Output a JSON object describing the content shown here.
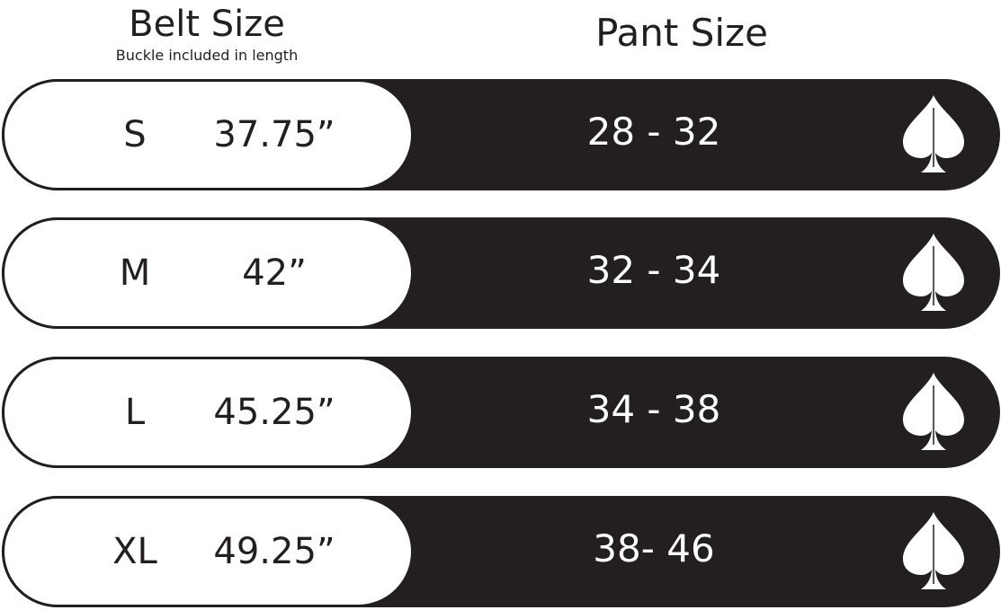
{
  "header": {
    "belt_title": "Belt Size",
    "belt_subtitle": "Buckle included in length",
    "pant_title": "Pant Size"
  },
  "rows": [
    {
      "size": "S",
      "length": "37.75”",
      "pant": "28 - 32",
      "icon": "spade-golf-flag-icon"
    },
    {
      "size": "M",
      "length": "42”",
      "pant": "32 - 34",
      "icon": "spade-golf-flag-icon"
    },
    {
      "size": "L",
      "length": "45.25”",
      "pant": "34 - 38",
      "icon": "spade-golf-flag-icon"
    },
    {
      "size": "XL",
      "length": "49.25”",
      "pant": "38- 46",
      "icon": "spade-golf-flag-icon"
    }
  ],
  "colors": {
    "dark": "#231f20",
    "light": "#ffffff"
  }
}
